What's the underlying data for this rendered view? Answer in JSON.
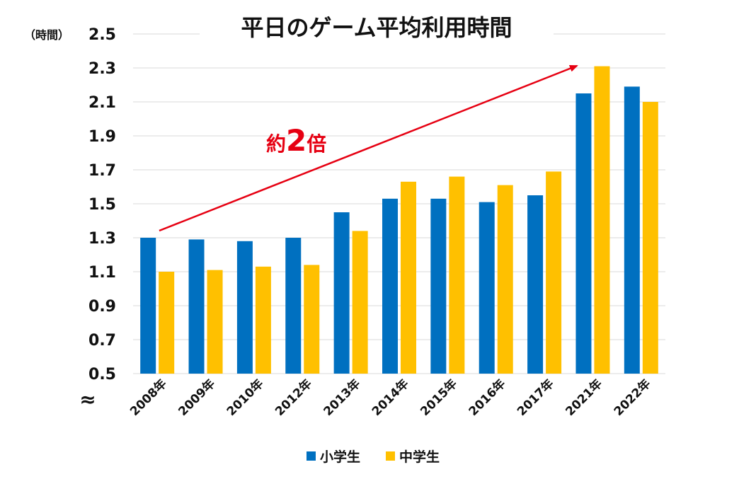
{
  "chart_data": {
    "type": "bar",
    "title": "平日のゲーム平均利用時間",
    "ylabel": "（時間）",
    "ylim": [
      0.5,
      2.5
    ],
    "yticks": [
      "0.5",
      "0.7",
      "0.9",
      "1.1",
      "1.3",
      "1.5",
      "1.7",
      "1.9",
      "2.1",
      "2.3",
      "2.5"
    ],
    "axis_break_symbol": "≈",
    "categories": [
      "2008年",
      "2009年",
      "2010年",
      "2012年",
      "2013年",
      "2014年",
      "2015年",
      "2016年",
      "2017年",
      "2021年",
      "2022年"
    ],
    "series": [
      {
        "name": "小学生",
        "color": "#0070c0",
        "values": [
          1.3,
          1.29,
          1.28,
          1.3,
          1.45,
          1.53,
          1.53,
          1.51,
          1.55,
          2.15,
          2.19
        ]
      },
      {
        "name": "中学生",
        "color": "#ffc000",
        "values": [
          1.1,
          1.11,
          1.13,
          1.14,
          1.34,
          1.63,
          1.66,
          1.61,
          1.69,
          2.31,
          2.1
        ]
      }
    ],
    "legend": "bottom",
    "annotation": {
      "prefix": "約",
      "number": "2",
      "suffix": "倍",
      "color": "#e60012"
    }
  }
}
